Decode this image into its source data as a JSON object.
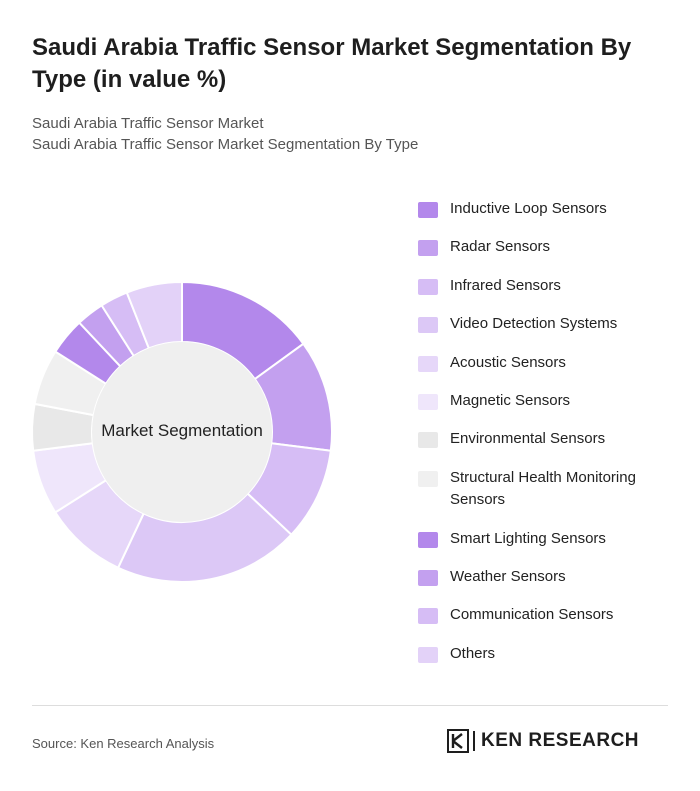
{
  "title": "Saudi Arabia Traffic Sensor Market Segmentation By Type (in value %)",
  "subtitle_1": "Saudi Arabia Traffic Sensor Market",
  "subtitle_2": "Saudi Arabia Traffic Sensor Market Segmentation By Type",
  "chart_data": {
    "type": "pie",
    "center_label": "Market Segmentation",
    "categories": [
      "Inductive Loop Sensors",
      "Radar Sensors",
      "Infrared Sensors",
      "Video Detection Systems",
      "Acoustic Sensors",
      "Magnetic Sensors",
      "Environmental Sensors",
      "Structural Health Monitoring Sensors",
      "Smart Lighting Sensors",
      "Weather Sensors",
      "Communication Sensors",
      "Others"
    ],
    "values": [
      15,
      12,
      10,
      20,
      9,
      7,
      5,
      6,
      4,
      3,
      3,
      6
    ],
    "colors": [
      "#b388eb",
      "#c3a0ef",
      "#d6bdf5",
      "#dcc8f6",
      "#e6d7f9",
      "#efe6fb",
      "#e8e8e8",
      "#f0f0f0",
      "#b388eb",
      "#c3a0ef",
      "#d6bdf5",
      "#e3d2f8"
    ],
    "legend_position": "right"
  },
  "source": "Source: Ken Research Analysis",
  "brand": "KEN RESEARCH"
}
